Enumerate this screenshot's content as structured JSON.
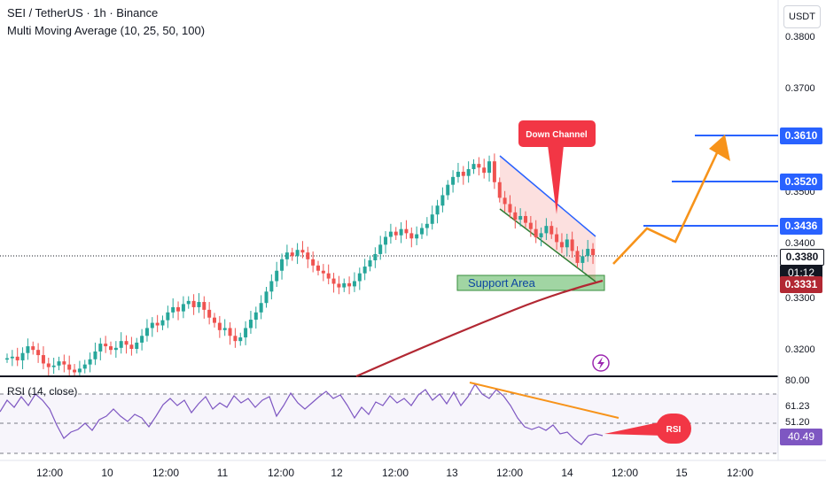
{
  "header": {
    "symbol_line": "SEI / TetherUS · 1h · Binance",
    "indicator_line": "Multi Moving Average (10, 25, 50, 100)",
    "rsi_label": "RSI (14, close)"
  },
  "currency_button": "USDT",
  "price_axis": {
    "labels": [
      "0.3800",
      "0.3700",
      "0.3500",
      "0.3400",
      "0.3300",
      "0.3200"
    ],
    "rsi_labels": [
      "80.00",
      "61.23",
      "51.20"
    ]
  },
  "price_tags": {
    "target_3": "0.3610",
    "target_2": "0.3520",
    "target_1": "0.3436",
    "current": "0.3380",
    "countdown": "01:12",
    "ma": "0.3331",
    "rsi_value": "40.49"
  },
  "time_axis": [
    "12:00",
    "10",
    "12:00",
    "11",
    "12:00",
    "12",
    "12:00",
    "13",
    "12:00",
    "14",
    "12:00",
    "15",
    "12:00"
  ],
  "annotations": {
    "down_channel": "Down Channel",
    "support_area": "Support Area",
    "rsi_callout": "RSI"
  },
  "colors": {
    "up": "#26a69a",
    "down": "#ef5350",
    "ma": "#b22833",
    "target_line": "#2962ff",
    "orange": "#f7931a",
    "rsi_line": "#7e57c2"
  },
  "chart_data": {
    "type": "candlestick",
    "symbol": "SEI / TetherUS",
    "interval": "1h",
    "exchange": "Binance",
    "ylim": [
      0.315,
      0.39
    ],
    "levels": [
      0.361,
      0.352,
      0.3436
    ],
    "last_price": 0.338,
    "ma_value": 0.3331,
    "rsi": {
      "period": 14,
      "last": 40.49,
      "bands": [
        80,
        61.23,
        51.2
      ]
    },
    "path": [
      0.3182,
      0.3185,
      0.3178,
      0.3192,
      0.3205,
      0.3198,
      0.3188,
      0.3172,
      0.3165,
      0.3168,
      0.3176,
      0.317,
      0.316,
      0.3155,
      0.3162,
      0.317,
      0.318,
      0.3195,
      0.321,
      0.3205,
      0.3198,
      0.3202,
      0.3215,
      0.3208,
      0.32,
      0.3212,
      0.3225,
      0.324,
      0.325,
      0.3245,
      0.3255,
      0.327,
      0.328,
      0.3272,
      0.3286,
      0.3292,
      0.328,
      0.329,
      0.3275,
      0.326,
      0.325,
      0.3236,
      0.324,
      0.3225,
      0.3215,
      0.3222,
      0.324,
      0.3256,
      0.327,
      0.3288,
      0.331,
      0.333,
      0.335,
      0.3372,
      0.3385,
      0.3378,
      0.339,
      0.3385,
      0.3372,
      0.336,
      0.335,
      0.3345,
      0.3335,
      0.3325,
      0.3318,
      0.3326,
      0.332,
      0.333,
      0.3345,
      0.3358,
      0.337,
      0.3382,
      0.34,
      0.3415,
      0.3425,
      0.3418,
      0.343,
      0.3422,
      0.3412,
      0.342,
      0.3432,
      0.344,
      0.3458,
      0.3475,
      0.3495,
      0.3515,
      0.353,
      0.354,
      0.3532,
      0.3545,
      0.3555,
      0.3548,
      0.3538,
      0.356,
      0.352,
      0.349,
      0.3478,
      0.3462,
      0.3448,
      0.3455,
      0.3442,
      0.343,
      0.3414,
      0.3422,
      0.3436,
      0.342,
      0.3405,
      0.3395,
      0.341,
      0.3388,
      0.3365,
      0.3378,
      0.3392,
      0.338
    ]
  }
}
